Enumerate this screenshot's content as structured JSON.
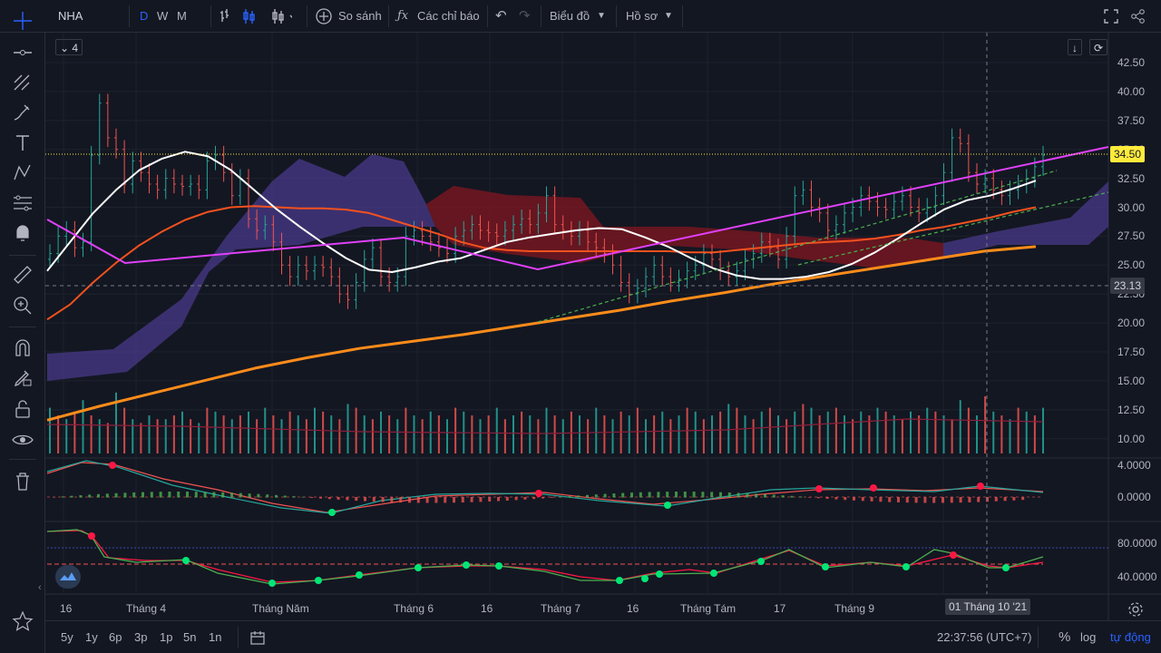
{
  "toolbar": {
    "symbol": "NHA",
    "intervals": [
      "D",
      "W",
      "M"
    ],
    "compare_label": "So sánh",
    "indicators_label": "Các chỉ báo",
    "chart_label": "Biểu đồ",
    "profile_label": "Hồ sơ"
  },
  "legend": {
    "collapsed_count": "4"
  },
  "price_axis": {
    "ticks": [
      "42.50",
      "40.00",
      "37.50",
      "35.00",
      "32.50",
      "30.00",
      "27.50",
      "25.00",
      "22.50",
      "20.00",
      "17.50",
      "15.00",
      "12.50",
      "10.00"
    ],
    "last_price": "34.50",
    "crosshair_price": "23.13",
    "last_price_color": "#ffeb3b"
  },
  "osc1_axis": {
    "ticks": [
      "4.0000",
      "0.0000"
    ]
  },
  "osc2_axis": {
    "ticks": [
      "80.0000",
      "40.0000"
    ]
  },
  "time_axis": {
    "labels": [
      "16",
      "Tháng 4",
      "Tháng Năm",
      "Tháng 6",
      "16",
      "Tháng 7",
      "16",
      "Tháng Tám",
      "17",
      "Tháng 9"
    ],
    "crosshair_date": "01 Tháng 10 '21"
  },
  "bottombar": {
    "ranges": [
      "5y",
      "1y",
      "6p",
      "3p",
      "1p",
      "5n",
      "1n"
    ],
    "clock": "22:37:56 (UTC+7)",
    "percent_label": "%",
    "log_label": "log",
    "auto_label": "tự động"
  },
  "colors": {
    "background": "#131722",
    "up": "#26a69a",
    "down": "#ef5350",
    "ma_white": "#ffffff",
    "ma_red": "#f4511e",
    "ma_orange": "#ff8c1a",
    "trend_magenta": "#e040fb",
    "trend_green": "#4caf50",
    "cloud_purple": "#4a3a8a",
    "cloud_red": "#7a1620"
  },
  "chart_data": {
    "type": "candlestick",
    "symbol": "NHA",
    "interval": "D",
    "last_close": 34.5,
    "crosshair_value": 23.13,
    "crosshair_date": "01 Tháng 10 '21",
    "ylim": [
      8.75,
      43.75
    ],
    "grid": true,
    "candles_close": [
      26.0,
      27.5,
      28.0,
      26.5,
      27.0,
      34.5,
      39.0,
      36.0,
      35.0,
      32.0,
      34.0,
      33.0,
      32.0,
      31.5,
      32.5,
      32.0,
      31.8,
      32.0,
      31.5,
      34.0,
      34.5,
      33.0,
      31.0,
      32.5,
      29.0,
      28.0,
      28.5,
      27.0,
      25.0,
      24.0,
      25.0,
      24.5,
      25.0,
      24.8,
      24.0,
      22.5,
      22.0,
      23.5,
      25.5,
      26.5,
      24.0,
      23.5,
      24.0,
      27.5,
      28.0,
      27.5,
      27.0,
      26.5,
      26.0,
      27.5,
      28.0,
      28.5,
      28.0,
      27.8,
      27.5,
      28.0,
      28.5,
      29.0,
      28.5,
      29.5,
      31.0,
      28.5,
      28.0,
      27.5,
      28.0,
      27.0,
      26.5,
      26.0,
      25.0,
      23.5,
      22.5,
      23.0,
      24.0,
      25.0,
      24.0,
      23.5,
      23.8,
      24.5,
      25.0,
      26.0,
      25.5,
      24.5,
      24.0,
      24.5,
      25.5,
      26.0,
      27.0,
      26.5,
      25.5,
      27.5,
      31.0,
      31.5,
      30.0,
      29.5,
      28.0,
      28.5,
      29.5,
      30.0,
      31.0,
      30.5,
      30.0,
      29.8,
      30.5,
      31.0,
      30.0,
      29.5,
      30.0,
      31.0,
      33.0,
      36.0,
      35.5,
      33.0,
      32.0,
      32.5,
      31.5,
      31.0,
      31.5,
      32.0,
      32.5,
      33.5,
      34.5
    ],
    "volume": [
      12,
      10,
      9,
      11,
      14,
      10,
      9,
      8,
      16,
      12,
      9,
      8,
      10,
      9,
      9,
      10,
      11,
      9,
      8,
      12,
      11,
      10,
      9,
      10,
      11,
      9,
      12,
      10,
      9,
      11,
      10,
      9,
      12,
      11,
      10,
      9,
      13,
      12,
      10,
      9,
      11,
      10,
      9,
      12,
      10,
      9,
      11,
      10,
      9,
      12,
      11,
      10,
      9,
      10,
      12,
      9,
      10,
      11,
      10,
      9,
      12,
      10,
      9,
      11,
      10,
      9,
      12,
      10,
      9,
      11,
      10,
      12,
      9,
      10,
      11,
      9,
      10,
      12,
      11,
      9,
      10,
      11,
      13,
      12,
      10,
      9,
      11,
      12,
      10,
      9,
      11,
      13,
      12,
      10,
      11,
      12,
      10,
      9,
      11,
      10,
      12,
      11,
      10,
      9,
      11,
      10,
      12,
      11,
      10,
      9,
      14,
      12,
      10,
      15,
      11,
      10,
      9,
      12,
      11,
      10,
      12
    ],
    "series": [
      {
        "values": [
          24.5,
          27.0,
          29.5,
          31.5,
          33.2,
          34.2,
          34.8,
          34.4,
          33.2,
          31.5,
          29.8,
          28.3,
          26.9,
          25.6,
          24.6,
          24.4,
          24.8,
          25.3,
          25.6,
          26.3,
          27.0,
          27.4,
          27.7,
          28.0,
          28.2,
          28.1,
          27.4,
          26.6,
          25.6,
          24.7,
          24.1,
          23.8,
          23.8,
          24.0,
          24.4,
          25.1,
          26.1,
          27.3,
          28.6,
          29.8,
          30.6,
          31.0,
          31.6,
          32.3
        ]
      },
      {
        "values": [
          20.3,
          21.6,
          23.5,
          25.2,
          26.7,
          27.9,
          28.9,
          29.6,
          30.0,
          30.1,
          30.0,
          29.9,
          29.9,
          29.8,
          29.5,
          28.9,
          28.3,
          27.7,
          27.0,
          26.5,
          26.3,
          26.2,
          26.2,
          26.2,
          26.2,
          26.2,
          26.2,
          26.2,
          26.1,
          26.1,
          26.3,
          26.5,
          26.7,
          26.9,
          27.0,
          27.1,
          27.3,
          27.6,
          28.0,
          28.3,
          28.7,
          29.1,
          29.6,
          30.0
        ]
      },
      {
        "values": [
          11.6,
          12.8,
          13.9,
          15.0,
          16.1,
          17.0,
          17.8,
          18.4,
          19.0,
          19.7,
          20.4,
          21.1,
          21.9,
          22.6,
          23.4,
          24.1,
          24.8,
          25.5,
          26.2,
          26.6
        ]
      }
    ]
  }
}
